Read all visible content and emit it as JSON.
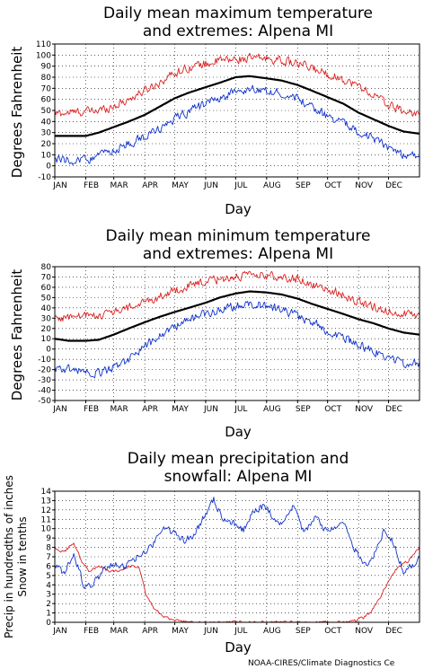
{
  "credit": "NOAA-CIRES/Climate Diagnostics Ce",
  "colors": {
    "record": "#dd2222",
    "mean": "#000000",
    "low": "#1133cc",
    "snow": "#dd2222",
    "precip": "#1133cc"
  },
  "chart_data": [
    {
      "type": "line",
      "title_line1": "Daily mean maximum temperature",
      "title_line2": "and extremes: Alpena MI",
      "xlabel": "Day",
      "ylabel": "Degrees Fahrenheit",
      "ylim": [
        -10,
        110
      ],
      "yticks": [
        -10,
        0,
        10,
        20,
        30,
        40,
        50,
        60,
        70,
        80,
        90,
        100,
        110
      ],
      "xlim": [
        1,
        366
      ],
      "month_labels": [
        "JAN",
        "FEB",
        "MAR",
        "APR",
        "MAY",
        "JUN",
        "JUL",
        "AUG",
        "SEP",
        "OCT",
        "NOV",
        "DEC"
      ],
      "month_days": [
        1,
        32,
        60,
        91,
        121,
        152,
        182,
        213,
        244,
        274,
        305,
        335
      ],
      "grid": true,
      "series": [
        {
          "role": "record",
          "x": [
            1,
            15,
            32,
            45,
            60,
            75,
            91,
            105,
            121,
            135,
            152,
            166,
            182,
            196,
            213,
            228,
            244,
            258,
            274,
            290,
            305,
            320,
            335,
            350,
            366
          ],
          "y": [
            47,
            48,
            49,
            50,
            54,
            60,
            68,
            75,
            84,
            89,
            92,
            95,
            96,
            97,
            97,
            95,
            92,
            88,
            83,
            78,
            72,
            64,
            55,
            49,
            47
          ]
        },
        {
          "role": "mean",
          "x": [
            1,
            15,
            32,
            45,
            60,
            75,
            91,
            105,
            121,
            135,
            152,
            166,
            182,
            196,
            213,
            228,
            244,
            258,
            274,
            290,
            305,
            320,
            335,
            350,
            366
          ],
          "y": [
            27,
            27,
            27,
            30,
            35,
            40,
            46,
            53,
            61,
            66,
            71,
            75,
            80,
            81,
            79,
            77,
            73,
            68,
            62,
            56,
            48,
            42,
            36,
            31,
            29
          ]
        },
        {
          "role": "low",
          "x": [
            1,
            15,
            32,
            45,
            60,
            75,
            91,
            105,
            121,
            135,
            152,
            166,
            182,
            196,
            213,
            228,
            244,
            258,
            274,
            290,
            305,
            320,
            335,
            350,
            366
          ],
          "y": [
            6,
            5,
            6,
            9,
            14,
            20,
            26,
            33,
            42,
            49,
            56,
            61,
            67,
            69,
            68,
            66,
            60,
            53,
            45,
            38,
            32,
            24,
            17,
            10,
            10
          ]
        }
      ]
    },
    {
      "type": "line",
      "title_line1": "Daily mean minimum temperature",
      "title_line2": "and extremes: Alpena MI",
      "xlabel": "Day",
      "ylabel": "Degrees Fahrenheit",
      "ylim": [
        -50,
        80
      ],
      "yticks": [
        -50,
        -40,
        -30,
        -20,
        -10,
        0,
        10,
        20,
        30,
        40,
        50,
        60,
        70,
        80
      ],
      "xlim": [
        1,
        366
      ],
      "month_labels": [
        "JAN",
        "FEB",
        "MAR",
        "APR",
        "MAY",
        "JUN",
        "JUL",
        "AUG",
        "SEP",
        "OCT",
        "NOV",
        "DEC"
      ],
      "month_days": [
        1,
        32,
        60,
        91,
        121,
        152,
        182,
        213,
        244,
        274,
        305,
        335
      ],
      "grid": true,
      "series": [
        {
          "role": "record",
          "x": [
            1,
            15,
            32,
            45,
            60,
            75,
            91,
            105,
            121,
            135,
            152,
            166,
            182,
            196,
            213,
            228,
            244,
            258,
            274,
            290,
            305,
            320,
            335,
            350,
            366
          ],
          "y": [
            30,
            31,
            32,
            33,
            36,
            40,
            45,
            51,
            57,
            61,
            65,
            68,
            70,
            71,
            71,
            70,
            68,
            63,
            58,
            52,
            46,
            41,
            37,
            34,
            32
          ]
        },
        {
          "role": "mean",
          "x": [
            1,
            15,
            32,
            45,
            60,
            75,
            91,
            105,
            121,
            135,
            152,
            166,
            182,
            196,
            213,
            228,
            244,
            258,
            274,
            290,
            305,
            320,
            335,
            350,
            366
          ],
          "y": [
            10,
            8,
            8,
            9,
            14,
            20,
            26,
            31,
            36,
            40,
            45,
            50,
            54,
            56,
            55,
            53,
            49,
            44,
            39,
            34,
            29,
            25,
            20,
            16,
            14
          ]
        },
        {
          "role": "low",
          "x": [
            1,
            15,
            32,
            45,
            60,
            75,
            91,
            105,
            121,
            135,
            152,
            166,
            182,
            196,
            213,
            228,
            244,
            258,
            274,
            290,
            305,
            320,
            335,
            350,
            366
          ],
          "y": [
            -18,
            -20,
            -22,
            -24,
            -18,
            -10,
            2,
            12,
            22,
            28,
            34,
            38,
            42,
            44,
            42,
            38,
            32,
            26,
            18,
            12,
            4,
            -2,
            -8,
            -14,
            -14
          ]
        }
      ]
    },
    {
      "type": "line",
      "title_line1": "Daily mean precipitation and",
      "title_line2": "snowfall: Alpena MI",
      "xlabel": "Day",
      "ylabel_line1": "Precip in hundredths of inches",
      "ylabel_line2": "Snow in tenths",
      "ylim": [
        0,
        14
      ],
      "yticks": [
        0,
        1,
        2,
        3,
        4,
        5,
        6,
        7,
        8,
        9,
        10,
        11,
        12,
        13,
        14
      ],
      "xlim": [
        1,
        366
      ],
      "month_labels": [
        "JAN",
        "FEB",
        "MAR",
        "APR",
        "MAY",
        "JUN",
        "JUL",
        "AUG",
        "SEP",
        "OCT",
        "NOV",
        "DEC"
      ],
      "month_days": [
        1,
        32,
        60,
        91,
        121,
        152,
        182,
        213,
        244,
        274,
        305,
        335
      ],
      "grid": true,
      "series": [
        {
          "role": "snow",
          "x": [
            1,
            10,
            20,
            28,
            35,
            45,
            55,
            65,
            75,
            85,
            92,
            100,
            110,
            120,
            135,
            152,
            182,
            213,
            244,
            274,
            290,
            300,
            310,
            318,
            326,
            335,
            345,
            355,
            366
          ],
          "y": [
            8,
            7.5,
            8.5,
            6.5,
            5.5,
            6,
            5.5,
            5.5,
            6,
            6,
            3,
            1.5,
            0.6,
            0.2,
            0.05,
            0,
            0,
            0,
            0,
            0,
            0,
            0.1,
            0.5,
            1.2,
            2.5,
            4.5,
            6,
            6.5,
            8
          ]
        },
        {
          "role": "precip",
          "x": [
            1,
            10,
            20,
            30,
            40,
            50,
            60,
            70,
            80,
            90,
            100,
            110,
            120,
            130,
            140,
            150,
            160,
            170,
            180,
            190,
            200,
            210,
            220,
            230,
            240,
            250,
            260,
            270,
            280,
            290,
            300,
            310,
            320,
            330,
            340,
            350,
            360,
            366
          ],
          "y": [
            6,
            5.2,
            7.5,
            3.8,
            4.2,
            5.5,
            6.2,
            5.8,
            6.8,
            7.2,
            8.5,
            10.2,
            9.5,
            8.8,
            9.3,
            11.2,
            13.2,
            10.8,
            10.5,
            9.8,
            11.8,
            12.4,
            11.2,
            10.4,
            12.6,
            9.5,
            11.2,
            10.2,
            9.8,
            10.5,
            8.2,
            6.0,
            7.0,
            9.8,
            8.5,
            5.5,
            6.2,
            7.0
          ]
        }
      ]
    }
  ]
}
